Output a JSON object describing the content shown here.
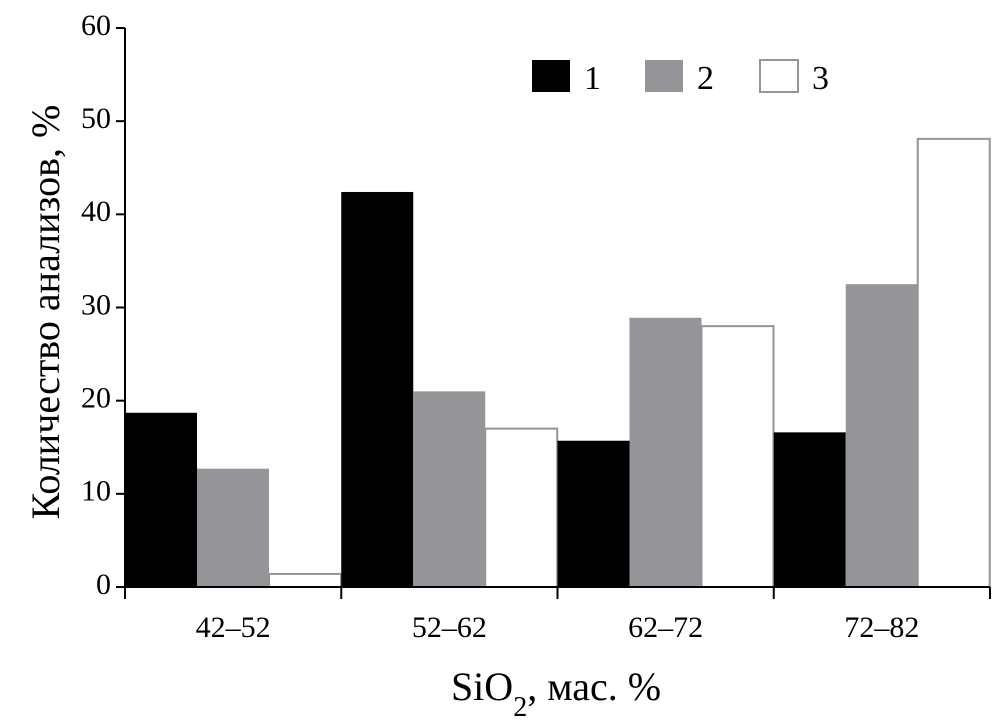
{
  "chart_data": {
    "type": "bar",
    "categories": [
      "42–52",
      "52–62",
      "62–72",
      "72–82"
    ],
    "series": [
      {
        "name": "1",
        "color": "#000000",
        "values": [
          18.7,
          42.4,
          15.7,
          16.6
        ]
      },
      {
        "name": "2",
        "color": "#939598",
        "values": [
          12.7,
          21.0,
          28.9,
          32.5
        ]
      },
      {
        "name": "3",
        "color": "#ffffff",
        "values": [
          1.4,
          17.0,
          28.0,
          48.1
        ]
      }
    ],
    "ylim": [
      0,
      60
    ],
    "yticks": [
      0,
      10,
      20,
      30,
      40,
      50,
      60
    ],
    "ytick_labels": [
      "0",
      "10",
      "20",
      "30",
      "40",
      "50",
      "60"
    ],
    "ylabel": "Количество анализов, %",
    "xlabel_main": "SiO",
    "xlabel_sub": "2",
    "xlabel_rest": ", мас. %",
    "legend_position": "top-right",
    "outline_color": "#939598",
    "grid": false
  }
}
